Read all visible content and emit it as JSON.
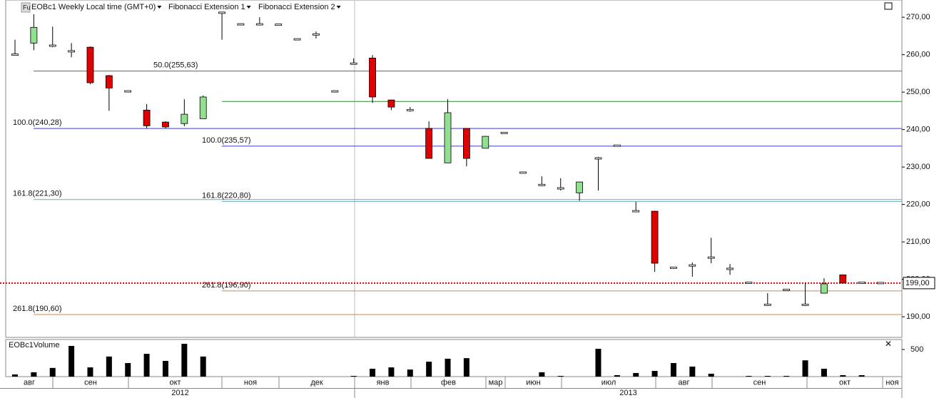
{
  "header": {
    "instrument": "EOBc1 Weekly Local time (GMT+0)",
    "studies": [
      "Fibonacci Extension 1",
      "Fibonacci Extension 2"
    ],
    "icon": "Fu"
  },
  "chart_data": {
    "type": "candlestick",
    "open": [
      260.0,
      263.1,
      262.4,
      260.9,
      262.0,
      254.4,
      250.2,
      245.2,
      242.0,
      241.6,
      242.9,
      271.2,
      268.1,
      268.1,
      268.0,
      264.1,
      265.4,
      250.2,
      257.6,
      259.1,
      247.9,
      245.2,
      240.3,
      231.1,
      240.3,
      235.0,
      239.1,
      228.5,
      225.2,
      224.3,
      223.1,
      232.3,
      235.7,
      218.2,
      218.2,
      203.1,
      203.7,
      205.8,
      202.8,
      199.1,
      193.2,
      197.2,
      193.2,
      196.3,
      201.2,
      199.1,
      199.0
    ],
    "high": [
      264,
      270.8,
      267.5,
      263.1,
      262.2,
      254.6,
      250.4,
      246.8,
      242.2,
      248.1,
      249.1,
      271.4,
      268.3,
      270.0,
      268.2,
      264.3,
      266.2,
      250.4,
      259.0,
      259.9,
      248.0,
      246.0,
      242.2,
      248.1,
      240.3,
      238.3,
      239.3,
      228.7,
      227.5,
      227.0,
      226.1,
      232.7,
      235.9,
      220.7,
      218.3,
      203.3,
      204.5,
      211.1,
      204.1,
      199.3,
      196.3,
      197.4,
      199.1,
      200.3,
      201.3,
      199.3,
      199.2
    ],
    "low": [
      259.8,
      261.2,
      262.0,
      259.3,
      252.1,
      245.0,
      250.0,
      240.3,
      240.3,
      240.9,
      242.9,
      264.0,
      267.9,
      267.9,
      267.8,
      263.9,
      264.3,
      250.0,
      257.4,
      247.1,
      245.2,
      244.8,
      232.3,
      231.1,
      230.2,
      235.0,
      238.9,
      228.3,
      224.9,
      223.7,
      221.0,
      223.7,
      235.5,
      218.0,
      202.0,
      202.9,
      200.7,
      204.3,
      201.2,
      198.9,
      192.9,
      197.0,
      192.9,
      196.3,
      199.0,
      198.9,
      198.8
    ],
    "close": [
      260.0,
      267.3,
      262.4,
      260.9,
      252.5,
      251.1,
      250.2,
      241.0,
      240.7,
      244.1,
      248.7,
      271.2,
      268.1,
      268.1,
      268.0,
      264.1,
      265.4,
      250.2,
      257.6,
      248.7,
      246.0,
      245.2,
      232.3,
      244.5,
      232.3,
      238.2,
      239.1,
      228.5,
      225.2,
      224.3,
      226.0,
      232.3,
      235.7,
      218.2,
      204.3,
      203.1,
      203.7,
      205.8,
      202.8,
      199.1,
      193.2,
      197.2,
      193.2,
      198.8,
      199.0,
      199.1,
      199.0
    ],
    "up_color": "#90e090",
    "down_color": "#e00000",
    "flat_color": "#ffffff",
    "ylim": [
      184.5,
      274.6
    ],
    "yticks": [
      {
        "value": 190,
        "label": "190,00"
      },
      {
        "value": 200,
        "label": "200,00"
      },
      {
        "value": 210,
        "label": "210,00"
      },
      {
        "value": 220,
        "label": "220,00"
      },
      {
        "value": 230,
        "label": "230,00"
      },
      {
        "value": 240,
        "label": "240,00"
      },
      {
        "value": 250,
        "label": "250,00"
      },
      {
        "value": 260,
        "label": "260,00"
      },
      {
        "value": 270,
        "label": "270,00"
      }
    ],
    "last_price": {
      "value": 199,
      "label": "199,00",
      "color": "#e00000"
    },
    "fibonacci": [
      {
        "name": "Fibonacci Extension 1",
        "levels": [
          {
            "value": 255.63,
            "label": "50.0(255,63)",
            "color": "#2e8b2e"
          },
          {
            "value": 240.28,
            "label": "100.0(240,28)",
            "color": "#3a3ad8"
          },
          {
            "value": 221.3,
            "label": "161.8(221,30)",
            "color": "#6aa8b0"
          },
          {
            "value": 190.6,
            "label": "261.8(190,60)",
            "color": "#d08050"
          }
        ]
      },
      {
        "name": "Fibonacci Extension 2",
        "levels": [
          {
            "value": 247.5,
            "color": "#2e8b2e"
          },
          {
            "value": 235.57,
            "label": "100.0(235,57)",
            "color": "#3a3ad8"
          },
          {
            "value": 220.8,
            "label": "161.8(220,80)",
            "color": "#6aa8b0"
          },
          {
            "value": 196.9,
            "label": "261.8(196,90)",
            "color": "#d08050"
          }
        ]
      }
    ],
    "volume": {
      "name": "EOBc1Volume",
      "color": "#000000",
      "values": [
        40,
        80,
        160,
        566,
        170,
        370,
        250,
        420,
        290,
        605,
        370,
        null,
        null,
        null,
        null,
        null,
        null,
        null,
        13,
        145,
        170,
        130,
        275,
        330,
        340,
        null,
        null,
        null,
        80,
        13,
        null,
        513,
        26,
        66,
        105,
        250,
        185,
        53,
        null,
        13,
        13,
        13,
        300,
        145,
        26,
        26,
        null
      ],
      "ylim": [
        0,
        684
      ],
      "yticks": [
        500
      ]
    },
    "months": [
      "авг",
      "сен",
      "окт",
      "ноя",
      "дек",
      "янв",
      "фев",
      "мар",
      "июн",
      "июл",
      "авг",
      "сен",
      "окт",
      "ноя"
    ],
    "years": [
      "2012",
      "2013"
    ]
  }
}
